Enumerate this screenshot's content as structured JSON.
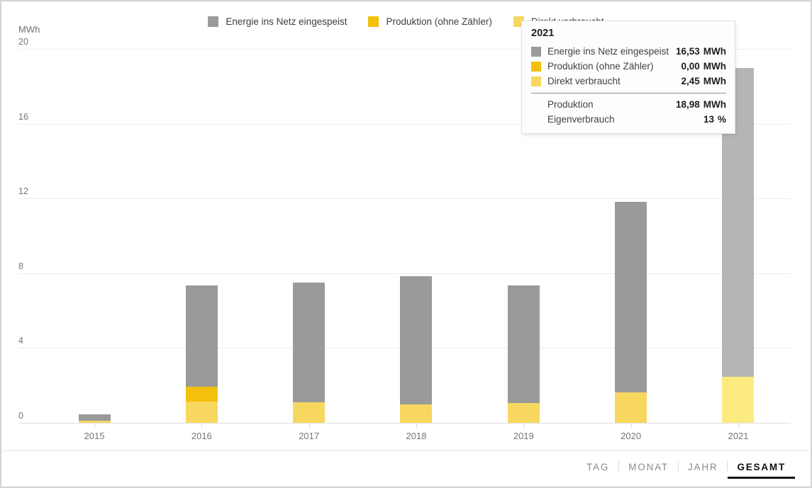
{
  "chart_data": {
    "type": "bar",
    "stacked": true,
    "title": "",
    "ylabel": "MWh",
    "xlabel": "",
    "ylim": [
      0,
      20
    ],
    "yticks": [
      0,
      4,
      8,
      12,
      16,
      20
    ],
    "grid": true,
    "legend_position": "top-center",
    "categories": [
      "2015",
      "2016",
      "2017",
      "2018",
      "2019",
      "2020",
      "2021"
    ],
    "series": [
      {
        "name": "Energie ins Netz eingespeist",
        "color": "#9a9a9a",
        "hover_color": "#b5b5b5",
        "values": [
          0.33,
          5.43,
          6.42,
          6.87,
          6.3,
          10.2,
          16.53
        ]
      },
      {
        "name": "Produktion (ohne Zähler)",
        "color": "#f3c00c",
        "hover_color": "#f6d44d",
        "values": [
          0.0,
          0.79,
          0.0,
          0.0,
          0.0,
          0.0,
          0.0
        ]
      },
      {
        "name": "Direkt verbraucht",
        "color": "#f7d75f",
        "hover_color": "#fceb80",
        "values": [
          0.13,
          1.13,
          1.09,
          0.98,
          1.06,
          1.62,
          2.45
        ]
      }
    ],
    "stack_order_bottom_to_top": [
      "Direkt verbraucht",
      "Produktion (ohne Zähler)",
      "Energie ins Netz eingespeist"
    ],
    "hovered_category": "2021"
  },
  "tooltip": {
    "title": "2021",
    "rows": [
      {
        "label": "Energie ins Netz eingespeist",
        "value": "16,53",
        "unit": "MWh",
        "color": "#9a9a9a"
      },
      {
        "label": "Produktion (ohne Zähler)",
        "value": "0,00",
        "unit": "MWh",
        "color": "#f3c00c"
      },
      {
        "label": "Direkt verbraucht",
        "value": "2,45",
        "unit": "MWh",
        "color": "#f7d75f"
      }
    ],
    "summary_rows": [
      {
        "label": "Produktion",
        "value": "18,98",
        "unit": "MWh"
      },
      {
        "label": "Eigenverbrauch",
        "value": "13",
        "unit": "%"
      }
    ]
  },
  "footer": {
    "tabs": [
      {
        "label": "TAG",
        "active": false
      },
      {
        "label": "MONAT",
        "active": false
      },
      {
        "label": "JAHR",
        "active": false
      },
      {
        "label": "GESAMT",
        "active": true
      }
    ]
  }
}
